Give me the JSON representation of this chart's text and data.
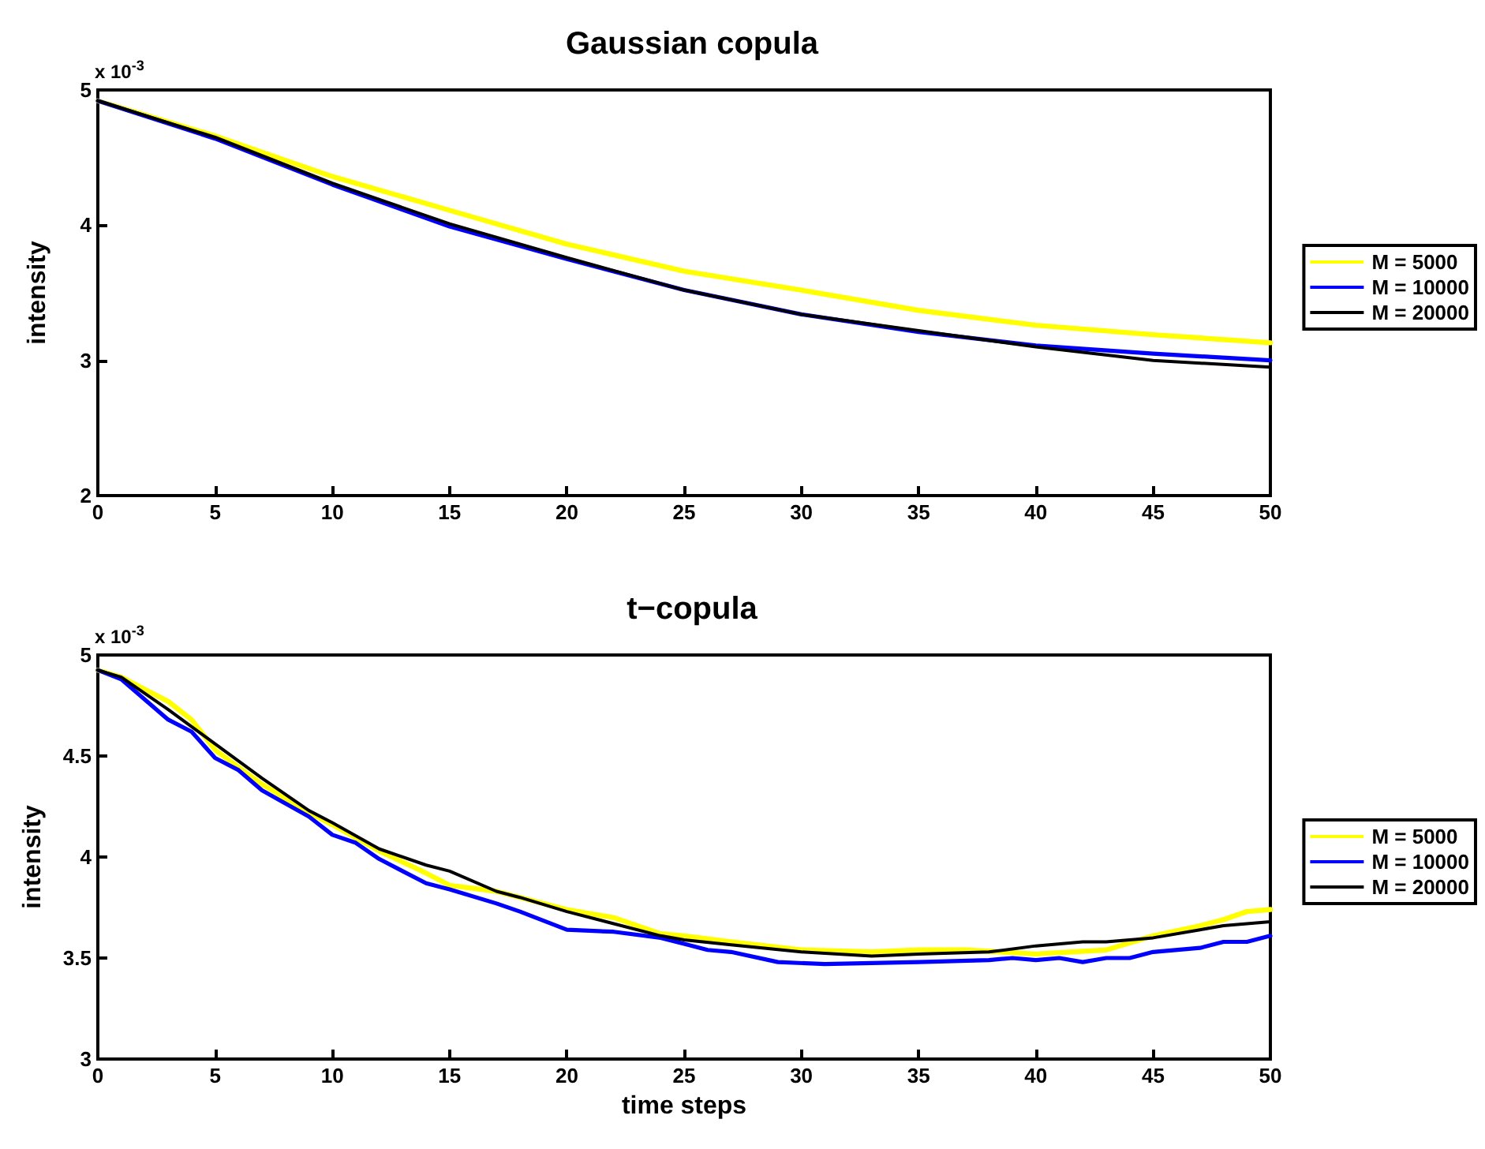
{
  "chart_data": [
    {
      "type": "line",
      "title": "Gaussian copula",
      "ylabel": "intensity",
      "annotations": [
        "x 10$^{-3}$"
      ],
      "marker": "none",
      "legend": "right",
      "xlim": [
        0,
        50
      ],
      "xticks": [
        0,
        5,
        10,
        15,
        20,
        25,
        30,
        35,
        40,
        45,
        50
      ],
      "ylim": [
        2,
        5
      ],
      "yticks": [
        2,
        3,
        4,
        5
      ],
      "series": [
        {
          "name": "M = 5000",
          "color": "#ffff00",
          "x": [
            0,
            5,
            10,
            15,
            20,
            25,
            30,
            35,
            40,
            45,
            50
          ],
          "values": [
            4.92,
            4.66,
            4.36,
            4.11,
            3.86,
            3.66,
            3.52,
            3.37,
            3.26,
            3.19,
            3.13
          ]
        },
        {
          "name": "M = 10000",
          "color": "#0000ff",
          "x": [
            0,
            5,
            10,
            15,
            20,
            25,
            30,
            35,
            40,
            45,
            50
          ],
          "values": [
            4.92,
            4.64,
            4.3,
            3.99,
            3.75,
            3.52,
            3.34,
            3.21,
            3.11,
            3.05,
            3.0
          ]
        },
        {
          "name": "M = 20000",
          "color": "#000000",
          "x": [
            0,
            5,
            10,
            15,
            20,
            25,
            30,
            35,
            40,
            45,
            50
          ],
          "values": [
            4.92,
            4.65,
            4.31,
            4.01,
            3.76,
            3.52,
            3.34,
            3.22,
            3.1,
            3.0,
            2.95
          ]
        }
      ]
    },
    {
      "type": "line",
      "title": "t−copula",
      "xlabel": "time steps",
      "ylabel": "intensity",
      "annotations": [
        "x 10$^{-3}$"
      ],
      "marker": "none",
      "legend": "right",
      "xlim": [
        0,
        50
      ],
      "xticks": [
        0,
        5,
        10,
        15,
        20,
        25,
        30,
        35,
        40,
        45,
        50
      ],
      "ylim": [
        3,
        5
      ],
      "yticks": [
        3,
        3.5,
        4,
        4.5,
        5
      ],
      "series": [
        {
          "name": "M = 5000",
          "color": "#ffff00",
          "x": [
            0,
            1,
            3,
            4,
            5,
            7,
            9,
            10,
            12,
            14,
            15,
            17,
            20,
            22,
            24,
            25,
            27,
            30,
            33,
            35,
            37,
            40,
            43,
            45,
            47,
            48,
            49,
            50
          ],
          "values": [
            4.925,
            4.89,
            4.77,
            4.68,
            4.53,
            4.36,
            4.22,
            4.16,
            4.03,
            3.92,
            3.86,
            3.83,
            3.74,
            3.7,
            3.62,
            3.61,
            3.58,
            3.54,
            3.53,
            3.54,
            3.54,
            3.52,
            3.54,
            3.61,
            3.66,
            3.69,
            3.73,
            3.74
          ]
        },
        {
          "name": "M = 10000",
          "color": "#0000ff",
          "x": [
            0,
            1,
            3,
            4,
            5,
            6,
            7,
            9,
            10,
            11,
            12,
            14,
            15,
            17,
            18,
            20,
            22,
            24,
            25,
            26,
            27,
            29,
            31,
            35,
            38,
            39,
            40,
            41,
            42,
            43,
            44,
            45,
            47,
            48,
            49,
            50
          ],
          "values": [
            4.925,
            4.88,
            4.68,
            4.62,
            4.49,
            4.43,
            4.33,
            4.2,
            4.11,
            4.07,
            3.99,
            3.87,
            3.84,
            3.77,
            3.73,
            3.64,
            3.63,
            3.6,
            3.57,
            3.54,
            3.53,
            3.48,
            3.47,
            3.48,
            3.49,
            3.5,
            3.49,
            3.5,
            3.48,
            3.5,
            3.5,
            3.53,
            3.55,
            3.58,
            3.58,
            3.61
          ]
        },
        {
          "name": "M = 20000",
          "color": "#000000",
          "x": [
            0,
            1,
            3,
            5,
            7,
            9,
            10,
            12,
            14,
            15,
            17,
            18,
            20,
            22,
            24,
            25,
            27,
            30,
            33,
            35,
            38,
            40,
            42,
            43,
            45,
            47,
            48,
            50
          ],
          "values": [
            4.925,
            4.89,
            4.73,
            4.56,
            4.39,
            4.23,
            4.17,
            4.04,
            3.96,
            3.93,
            3.83,
            3.8,
            3.73,
            3.67,
            3.61,
            3.59,
            3.565,
            3.53,
            3.51,
            3.52,
            3.53,
            3.56,
            3.58,
            3.58,
            3.6,
            3.64,
            3.66,
            3.68
          ]
        }
      ]
    }
  ]
}
